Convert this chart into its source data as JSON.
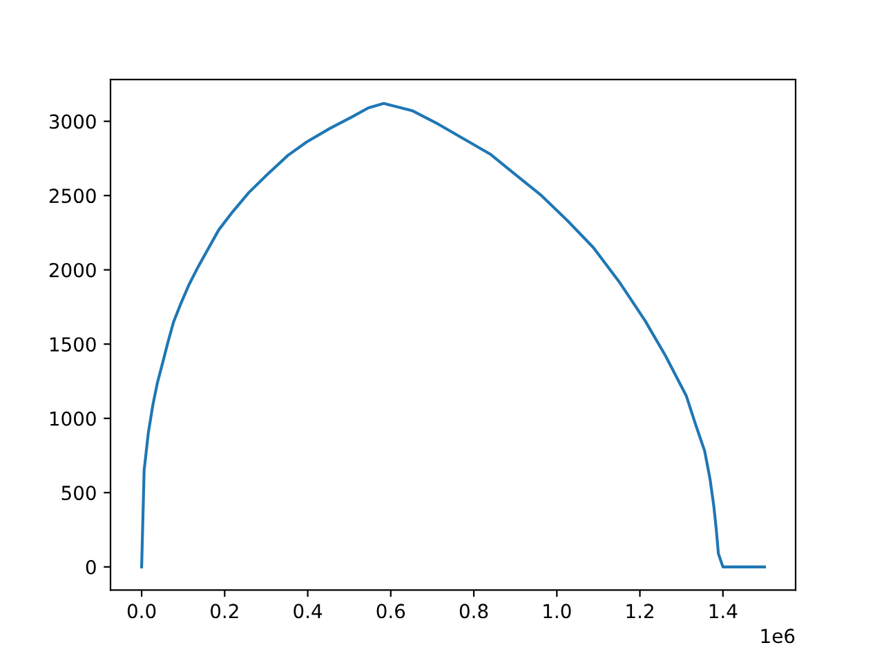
{
  "chart_data": {
    "type": "line",
    "x": [
      0,
      0.006,
      0.016,
      0.027,
      0.038,
      0.053,
      0.064,
      0.077,
      0.094,
      0.114,
      0.136,
      0.16,
      0.186,
      0.219,
      0.258,
      0.302,
      0.352,
      0.397,
      0.452,
      0.507,
      0.546,
      0.583,
      0.653,
      0.715,
      0.777,
      0.839,
      0.901,
      0.963,
      1.026,
      1.088,
      1.15,
      1.212,
      1.262,
      1.312,
      1.334,
      1.356,
      1.369,
      1.378,
      1.384,
      1.389,
      1.4,
      1.5
    ],
    "series": [
      {
        "color": "#1f77b4",
        "values": [
          0,
          650,
          900,
          1090,
          1240,
          1400,
          1520,
          1650,
          1770,
          1900,
          2020,
          2140,
          2270,
          2390,
          2520,
          2640,
          2770,
          2860,
          2950,
          3030,
          3090,
          3120,
          3070,
          2980,
          2880,
          2780,
          2640,
          2500,
          2330,
          2150,
          1920,
          1660,
          1420,
          1150,
          960,
          780,
          590,
          410,
          250,
          90,
          0,
          0
        ]
      }
    ],
    "xlim": [
      -0.075,
      1.575
    ],
    "ylim": [
      -156,
      3281
    ],
    "xticks": [
      {
        "value": 0,
        "label": "0.0"
      },
      0.2,
      0.4,
      0.6,
      0.8,
      {
        "value": 1,
        "label": "1.0"
      },
      1.2,
      1.4
    ],
    "yticks": [
      0,
      500,
      1000,
      1500,
      2000,
      2500,
      3000
    ],
    "annotations": [
      "1e6"
    ],
    "grid": false,
    "legend": false,
    "marker": "none",
    "line_style": "solid"
  }
}
